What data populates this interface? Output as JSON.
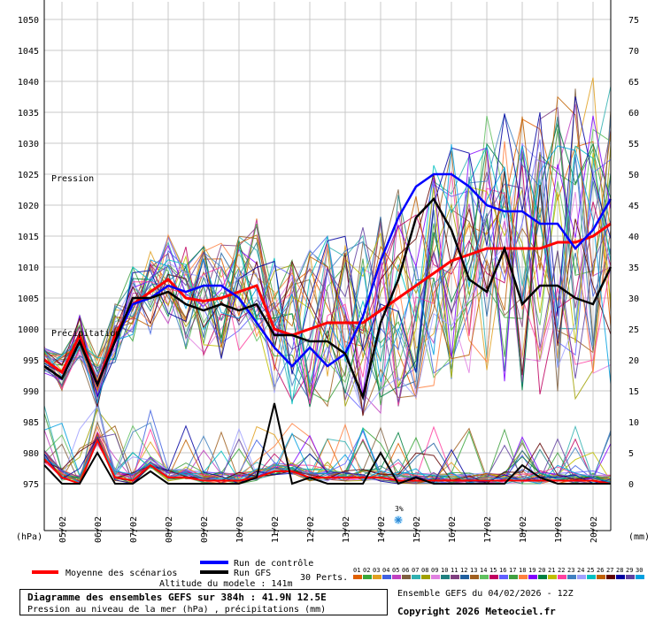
{
  "chart_data": {
    "type": "line",
    "left_axis": {
      "unit_label": "(hPa)",
      "ticks": [
        975,
        980,
        985,
        990,
        995,
        1000,
        1005,
        1010,
        1015,
        1020,
        1025,
        1030,
        1035,
        1040,
        1045,
        1050
      ],
      "range": [
        975,
        1050
      ]
    },
    "right_axis": {
      "unit_label": "(mm)",
      "ticks": [
        0,
        5,
        10,
        15,
        20,
        25,
        30,
        35,
        40,
        45,
        50,
        55,
        60,
        65,
        70,
        75
      ],
      "range": [
        0,
        75
      ]
    },
    "x_labels": [
      "05/02",
      "06/02",
      "07/02",
      "08/02",
      "09/02",
      "10/02",
      "11/02",
      "12/02",
      "13/02",
      "14/02",
      "15/02",
      "16/02",
      "17/02",
      "18/02",
      "19/02",
      "20/02"
    ],
    "x_range": [
      0,
      16
    ],
    "inner_labels": {
      "pressure": "Pression",
      "precip": "Précipitation"
    },
    "grid": true,
    "snow_marker": {
      "x": 10.0,
      "label": "3%"
    },
    "series": [
      {
        "name": "Moyenne des scénarios",
        "kind": "pressure",
        "color": "#ff0000",
        "x": [
          0,
          0.5,
          1,
          1.5,
          2,
          2.5,
          3,
          3.5,
          4,
          4.5,
          5,
          5.5,
          6,
          6.5,
          7,
          7.5,
          8,
          8.5,
          9,
          9.5,
          10,
          10.5,
          11,
          11.5,
          12,
          12.5,
          13,
          13.5,
          14,
          14.5,
          15,
          15.5,
          16
        ],
        "y": [
          995,
          993,
          999,
          991,
          999,
          1004,
          1006,
          1008,
          1005,
          1004.5,
          1005,
          1006,
          1007,
          1000,
          999,
          1000,
          1001,
          1001,
          1001,
          1003,
          1005,
          1007,
          1009,
          1011,
          1012,
          1013,
          1013,
          1013,
          1013,
          1014,
          1014,
          1015,
          1017
        ]
      },
      {
        "name": "Run de contrôle",
        "kind": "pressure",
        "color": "#0000ff",
        "x": [
          0,
          0.5,
          1,
          1.5,
          2,
          2.5,
          3,
          3.5,
          4,
          4.5,
          5,
          5.5,
          6,
          6.5,
          7,
          7.5,
          8,
          8.5,
          9,
          9.5,
          10,
          10.5,
          11,
          11.5,
          12,
          12.5,
          13,
          13.5,
          14,
          14.5,
          15,
          15.5,
          16
        ],
        "y": [
          994,
          992,
          998,
          991,
          998,
          1004,
          1005,
          1007,
          1006,
          1007,
          1007,
          1005,
          1001,
          997,
          994,
          997,
          994,
          996,
          1002,
          1011,
          1018,
          1023,
          1025,
          1025,
          1023,
          1020,
          1019,
          1019,
          1017,
          1017,
          1013,
          1016,
          1021
        ]
      },
      {
        "name": "Run GFS",
        "kind": "pressure",
        "color": "#000000",
        "x": [
          0,
          0.5,
          1,
          1.5,
          2,
          2.5,
          3,
          3.5,
          4,
          4.5,
          5,
          5.5,
          6,
          6.5,
          7,
          7.5,
          8,
          8.5,
          9,
          9.5,
          10,
          10.5,
          11,
          11.5,
          12,
          12.5,
          13,
          13.5,
          14,
          14.5,
          15,
          15.5,
          16
        ],
        "y": [
          994,
          992,
          998,
          991,
          998,
          1005,
          1005,
          1006,
          1004,
          1003,
          1004,
          1003,
          1004,
          999,
          999,
          998,
          998,
          996,
          989,
          1001,
          1008,
          1018,
          1021,
          1016,
          1008,
          1006,
          1013,
          1004,
          1007,
          1007,
          1005,
          1004,
          1010
        ]
      },
      {
        "name": "Moyenne des scénarios",
        "kind": "precip",
        "color": "#ff0000",
        "x": [
          0,
          0.5,
          1,
          1.5,
          2,
          2.5,
          3,
          3.5,
          4,
          4.5,
          5,
          5.5,
          6,
          6.5,
          7,
          7.5,
          8,
          8.5,
          9,
          9.5,
          10,
          10.5,
          11,
          11.5,
          12,
          12.5,
          13,
          13.5,
          14,
          14.5,
          15,
          15.5,
          16
        ],
        "y": [
          4,
          1,
          0,
          7,
          1,
          0.5,
          3,
          1,
          1,
          0.5,
          0.5,
          0.5,
          1,
          2,
          2,
          1,
          1,
          1,
          1,
          1,
          0.5,
          0.5,
          0.5,
          0.5,
          0.5,
          0.5,
          0.5,
          0.5,
          0.5,
          0.5,
          0.5,
          0.5,
          0
        ]
      },
      {
        "name": "Run GFS",
        "kind": "precip",
        "color": "#000000",
        "x": [
          0,
          0.5,
          1,
          1.5,
          2,
          2.5,
          3,
          3.5,
          4,
          4.5,
          5,
          5.5,
          6,
          6.5,
          7,
          7.5,
          8,
          8.5,
          9,
          9.5,
          10,
          10.5,
          11,
          11.5,
          12,
          12.5,
          13,
          13.5,
          14,
          14.5,
          15,
          15.5,
          16
        ],
        "y": [
          3,
          0,
          0,
          5,
          0,
          0,
          2,
          0,
          0,
          0,
          0,
          0,
          1,
          13,
          0,
          1,
          0,
          0,
          0,
          5,
          0,
          1,
          0,
          0,
          0,
          0,
          0,
          3,
          1,
          0,
          0,
          0,
          0
        ]
      }
    ],
    "legend": {
      "mean": "Moyenne des scénarios",
      "control": "Run de contrôle",
      "gfs": "Run GFS",
      "perts": "30 Perts.",
      "pert_numbers": [
        "01",
        "02",
        "03",
        "04",
        "05",
        "06",
        "07",
        "08",
        "09",
        "10",
        "11",
        "12",
        "13",
        "14",
        "15",
        "16",
        "17",
        "18",
        "19",
        "20",
        "21",
        "22",
        "23",
        "24",
        "25",
        "26",
        "27",
        "28",
        "29",
        "30"
      ],
      "pert_colors": [
        "#e06000",
        "#3aa63a",
        "#e0a020",
        "#4060e0",
        "#c040c0",
        "#806040",
        "#30b0b0",
        "#a0a000",
        "#e080e0",
        "#208080",
        "#804080",
        "#2060a0",
        "#a06020",
        "#60c060",
        "#c00060",
        "#6060ff",
        "#40a040",
        "#ff8040",
        "#8000ff",
        "#008040",
        "#c0c000",
        "#ff40a0",
        "#4080c0",
        "#a0a0ff",
        "#00c0c0",
        "#c06000",
        "#600000",
        "#0000a0",
        "#6040a0",
        "#00a0e0"
      ]
    },
    "model_altitude": "Altitude du modele : 141m",
    "title_main": "Diagramme des ensembles GEFS sur 384h : 41.9N 12.5E",
    "title_sub": "Pression au niveau de la mer (hPa) , précipitations (mm)",
    "run_info": "Ensemble GEFS du 04/02/2026 - 12Z",
    "copyright": "Copyright 2026 Meteociel.fr"
  }
}
